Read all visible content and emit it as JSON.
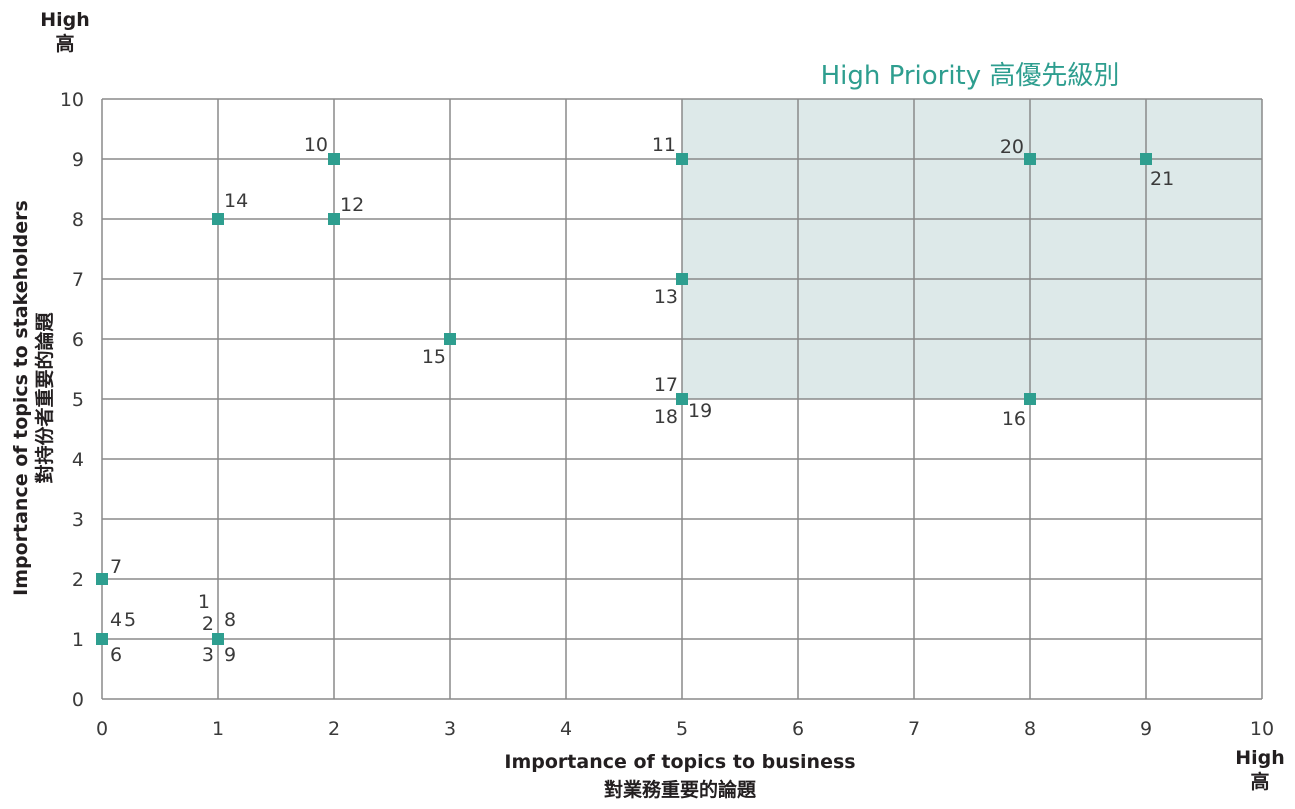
{
  "chart_data": {
    "type": "scatter",
    "xlim": [
      0,
      10
    ],
    "ylim": [
      0,
      10
    ],
    "xticks": [
      "0",
      "1",
      "2",
      "3",
      "4",
      "5",
      "6",
      "7",
      "8",
      "9",
      "10"
    ],
    "yticks": [
      "0",
      "1",
      "2",
      "3",
      "4",
      "5",
      "6",
      "7",
      "8",
      "9",
      "10"
    ],
    "grid": true,
    "xlabel": "Importance of topics to business",
    "xlabel_zh": "對業務重要的論題",
    "ylabel": "Importance of topics to stakeholders",
    "ylabel_zh": "對持份者重要的論題",
    "x_high_label": "High",
    "x_high_label_zh": "高",
    "y_high_label": "High",
    "y_high_label_zh": "高",
    "region": {
      "label": "High Priority 高優先級別",
      "x": [
        5,
        10
      ],
      "y": [
        5,
        10
      ],
      "color": "#dde9e9"
    },
    "marker_color": "#2e9e8f",
    "points": [
      {
        "x": 0,
        "y": 2,
        "label": "7"
      },
      {
        "x": 0,
        "y": 1,
        "label": "4 5 6"
      },
      {
        "x": 1,
        "y": 1,
        "label": "1 2 3 8 9"
      },
      {
        "x": 1,
        "y": 8,
        "label": "14"
      },
      {
        "x": 2,
        "y": 9,
        "label": "10"
      },
      {
        "x": 2,
        "y": 8,
        "label": "12"
      },
      {
        "x": 3,
        "y": 6,
        "label": "15"
      },
      {
        "x": 5,
        "y": 9,
        "label": "11"
      },
      {
        "x": 5,
        "y": 7,
        "label": "13"
      },
      {
        "x": 5,
        "y": 5,
        "label": "17 18 19"
      },
      {
        "x": 8,
        "y": 9,
        "label": "20"
      },
      {
        "x": 8,
        "y": 5,
        "label": "16"
      },
      {
        "x": 9,
        "y": 9,
        "label": "21"
      }
    ],
    "point_labels": [
      {
        "text": "7"
      },
      {
        "text": "4"
      },
      {
        "text": "5"
      },
      {
        "text": "6"
      },
      {
        "text": "1"
      },
      {
        "text": "2"
      },
      {
        "text": "8"
      },
      {
        "text": "3"
      },
      {
        "text": "9"
      },
      {
        "text": "14"
      },
      {
        "text": "10"
      },
      {
        "text": "12"
      },
      {
        "text": "15"
      },
      {
        "text": "11"
      },
      {
        "text": "13"
      },
      {
        "text": "17"
      },
      {
        "text": "18"
      },
      {
        "text": "19"
      },
      {
        "text": "20"
      },
      {
        "text": "21"
      },
      {
        "text": "16"
      }
    ]
  }
}
